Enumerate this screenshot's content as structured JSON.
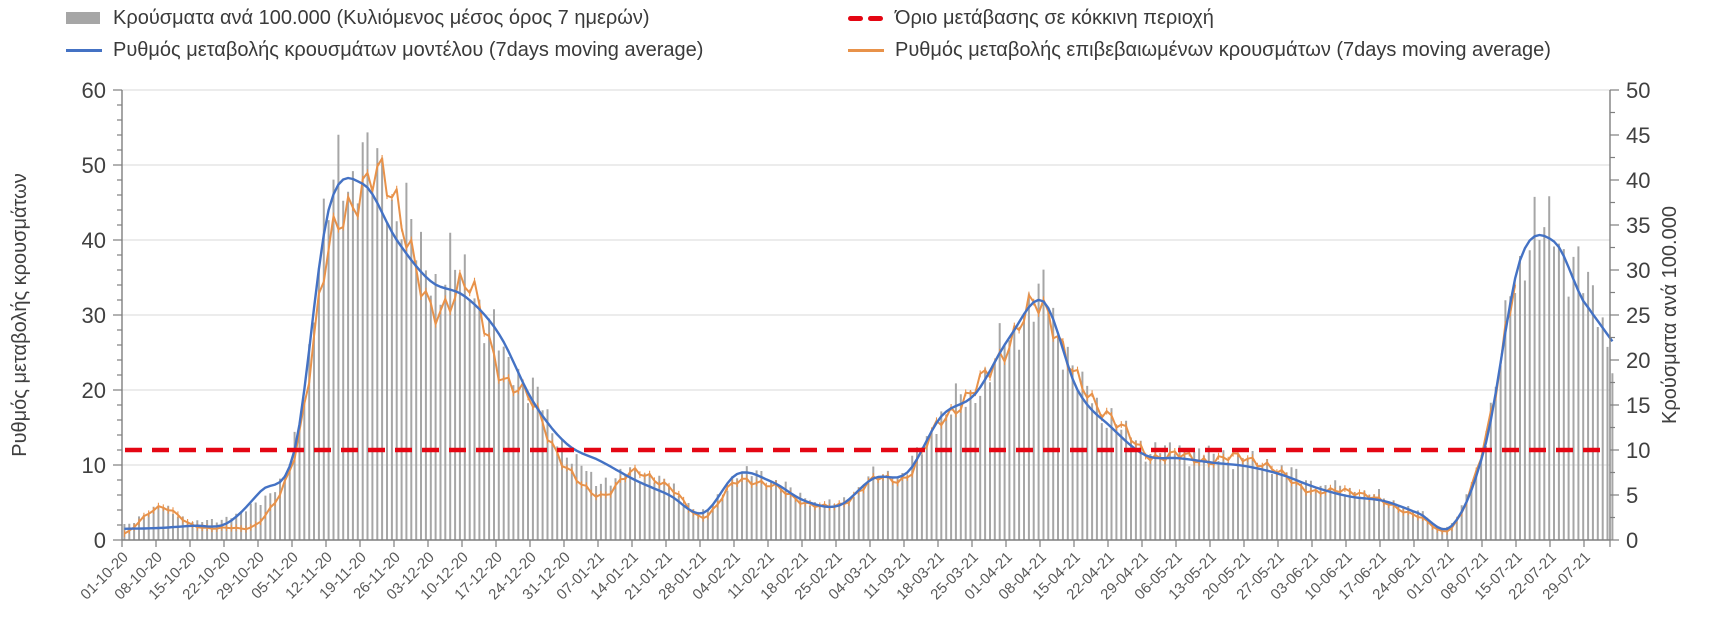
{
  "page": {
    "background": "#ffffff"
  },
  "colors": {
    "bars": "#a6a6a6",
    "model_line": "#4472c4",
    "confirmed_line": "#e8924a",
    "threshold": "#e40613",
    "gridline": "#d9d9d9",
    "axis_line": "#7f7f7f",
    "tick_label": "#404040",
    "date_label": "#595959",
    "legend_text": "#3a3a3a"
  },
  "legend": {
    "items": [
      {
        "label": "Κρούσματα ανά 100.000 (Κυλιόμενος μέσος όρος 7 ημερών)",
        "marker": "bar",
        "color": "#a6a6a6"
      },
      {
        "label": "Όριο μετάβασης σε κόκκινη περιοχή",
        "marker": "dash",
        "color": "#e40613"
      },
      {
        "label": "Ρυθμός μεταβολής κρουσμάτων μοντέλου (7days moving average)",
        "marker": "line",
        "color": "#4472c4"
      },
      {
        "label": "Ρυθμός μεταβολής επιβεβαιωμένων κρουσμάτων (7days moving average)",
        "marker": "line",
        "color": "#e8924a"
      }
    ]
  },
  "chart_data": {
    "type": "bar+line",
    "title": "",
    "grid": "horizontal",
    "legend_position": "top",
    "left_axis": {
      "title": "Ρυθμός μεταβολής κρουσμάτων",
      "range": [
        0,
        60
      ],
      "major_step": 10,
      "minor_step": 2,
      "ticks": [
        0,
        10,
        20,
        30,
        40,
        50,
        60
      ]
    },
    "right_axis": {
      "title": "Κρούσματα ανά 100.000",
      "range": [
        0,
        50
      ],
      "major_step": 5,
      "minor_step": 2.5,
      "ticks": [
        0,
        5,
        10,
        15,
        20,
        25,
        30,
        35,
        40,
        45,
        50
      ]
    },
    "x_axis": {
      "tick_labels": [
        "01-10-20",
        "08-10-20",
        "15-10-20",
        "22-10-20",
        "29-10-20",
        "05-11-20",
        "12-11-20",
        "19-11-20",
        "26-11-20",
        "03-12-20",
        "10-12-20",
        "17-12-20",
        "24-12-20",
        "31-12-20",
        "07-01-21",
        "14-01-21",
        "21-01-21",
        "28-01-21",
        "04-02-21",
        "11-02-21",
        "18-02-21",
        "25-02-21",
        "04-03-21",
        "11-03-21",
        "18-03-21",
        "25-03-21",
        "01-04-21",
        "08-04-21",
        "15-04-21",
        "22-04-21",
        "29-04-21",
        "06-05-21",
        "13-05-21",
        "20-05-21",
        "27-05-21",
        "03-06-21",
        "10-06-21",
        "17-06-21",
        "24-06-21",
        "01-07-21",
        "08-07-21",
        "15-07-21",
        "22-07-21",
        "29-07-21"
      ],
      "granularity": "daily bars, weekly labeled ticks"
    },
    "threshold": {
      "label": "Όριο μετάβασης σε κόκκινη περιοχή",
      "value_right_axis": 10,
      "value_left_axis": 12,
      "style": "dashed",
      "color": "#e40613"
    },
    "series": [
      {
        "name": "Κρούσματα ανά 100.000 (Κυλιόμενος μέσος όρος 7 ημερών)",
        "type": "bar",
        "axis": "right",
        "color": "#a6a6a6",
        "weekly_values": [
          1.6,
          3.6,
          2.1,
          2.5,
          4.5,
          10.5,
          37.0,
          41.5,
          37.5,
          29.5,
          29.5,
          21.5,
          16.5,
          9.8,
          6.6,
          7.6,
          6.1,
          3.1,
          7.2,
          6.8,
          4.6,
          4.1,
          7.1,
          7.8,
          13.9,
          16.5,
          22.5,
          26.8,
          17.8,
          13.5,
          10.3,
          10.0,
          9.4,
          8.9,
          7.9,
          6.2,
          5.6,
          4.7,
          3.1,
          1.8,
          11.5,
          31.3,
          34.0,
          28.0
        ]
      },
      {
        "name": "Ρυθμός μεταβολής κρουσμάτων μοντέλου (7days moving average)",
        "type": "line",
        "axis": "left",
        "color": "#4472c4",
        "weekly_values": [
          1.5,
          1.6,
          1.9,
          2.2,
          6.5,
          12.0,
          44.0,
          47.5,
          40.0,
          34.5,
          32.5,
          27.5,
          18.5,
          12.8,
          10.5,
          8.0,
          6.0,
          3.6,
          8.8,
          7.8,
          5.2,
          4.6,
          8.2,
          9.0,
          16.5,
          19.5,
          27.0,
          31.8,
          20.0,
          15.0,
          11.3,
          10.9,
          10.3,
          9.8,
          8.7,
          7.0,
          5.8,
          5.2,
          3.6,
          1.9,
          13.0,
          37.3,
          39.8,
          31.0
        ]
      },
      {
        "name": "Ρυθμός μεταβολής επιβεβαιωμένων κρουσμάτων (7days moving average)",
        "type": "line",
        "axis": "left",
        "color": "#e8924a",
        "weekly_values": [
          0.8,
          4.4,
          2.0,
          1.6,
          2.6,
          11.5,
          38.0,
          47.0,
          45.5,
          30.0,
          34.5,
          23.0,
          18.0,
          9.5,
          6.0,
          9.0,
          7.0,
          3.1,
          7.8,
          7.2,
          5.0,
          4.6,
          8.0,
          8.6,
          16.0,
          20.0,
          26.5,
          31.2,
          21.0,
          16.5,
          11.6,
          11.2,
          10.6,
          11.0,
          8.7,
          6.4,
          6.6,
          5.0,
          3.2,
          1.7,
          13.5,
          37.5,
          null,
          null
        ]
      }
    ],
    "end_extension": {
      "days_past_last_label": 5,
      "model_line_end_left_axis": 26.5,
      "bars_end_right_axis": 21.5
    },
    "sampling_note": "weekly anchor values read from chart; bars/lines drawn daily between anchors"
  }
}
